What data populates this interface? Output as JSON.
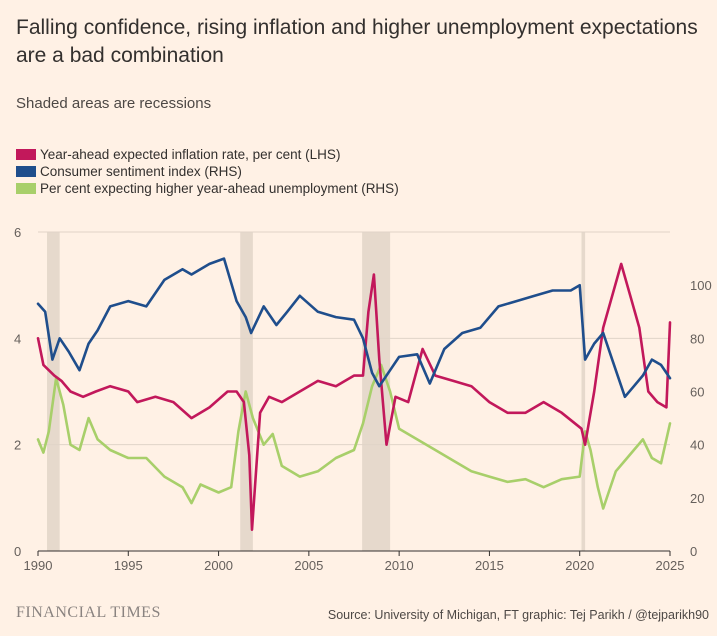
{
  "title": "Falling confidence, rising inflation and higher unemployment expectations are a bad combination",
  "subtitle": "Shaded areas are recessions",
  "source": "Source: University of Michigan, FT graphic: Tej Parikh / @tejparikh90",
  "brand": "FINANCIAL TIMES",
  "colors": {
    "background": "#FFF1E5",
    "inflation": "#C2185B",
    "sentiment": "#1F4E8C",
    "unemployment": "#A8CF6A",
    "recession": "#E6D9CC",
    "grid": "#E0D4C8"
  },
  "chart_data": {
    "type": "line",
    "x_range": [
      1990,
      2025
    ],
    "x_ticks": [
      "1990",
      "1995",
      "2000",
      "2005",
      "2010",
      "2015",
      "2020",
      "2025"
    ],
    "lhs": {
      "range": [
        0,
        6
      ],
      "ticks": [
        "0",
        "2",
        "4",
        "6"
      ]
    },
    "rhs": {
      "range": [
        0,
        120
      ],
      "ticks": [
        "0",
        "20",
        "40",
        "60",
        "80",
        "100"
      ]
    },
    "recessions": [
      [
        1990.5,
        1991.2
      ],
      [
        2001.2,
        2001.9
      ],
      [
        2007.95,
        2009.5
      ],
      [
        2020.1,
        2020.3
      ]
    ],
    "series": [
      {
        "name": "Year-ahead expected inflation rate, per cent (LHS)",
        "axis": "lhs",
        "color": "#C2185B",
        "x": [
          1990,
          1990.3,
          1990.6,
          1990.9,
          1991.3,
          1991.8,
          1992.5,
          1993.2,
          1994,
          1995,
          1995.5,
          1996.5,
          1997.5,
          1998.5,
          1999.5,
          2000.5,
          2001,
          2001.4,
          2001.7,
          2001.85,
          2002.3,
          2002.8,
          2003.5,
          2004.5,
          2005.5,
          2006.5,
          2007.5,
          2008,
          2008.3,
          2008.6,
          2008.9,
          2009.3,
          2009.8,
          2010.5,
          2011.3,
          2012,
          2013,
          2014,
          2015,
          2016,
          2017,
          2018,
          2019,
          2020.1,
          2020.3,
          2020.8,
          2021.3,
          2021.8,
          2022.3,
          2022.8,
          2023.3,
          2023.8,
          2024.3,
          2024.8,
          2025
        ],
        "values": [
          4.0,
          3.5,
          3.4,
          3.3,
          3.2,
          3.0,
          2.9,
          3.0,
          3.1,
          3.0,
          2.8,
          2.9,
          2.8,
          2.5,
          2.7,
          3.0,
          3.0,
          2.8,
          1.8,
          0.4,
          2.6,
          2.9,
          2.8,
          3.0,
          3.2,
          3.1,
          3.3,
          3.3,
          4.5,
          5.2,
          3.6,
          2.0,
          2.9,
          2.8,
          3.8,
          3.3,
          3.2,
          3.1,
          2.8,
          2.6,
          2.6,
          2.8,
          2.6,
          2.3,
          2.0,
          3.0,
          4.2,
          4.8,
          5.4,
          4.8,
          4.2,
          3.0,
          2.8,
          2.7,
          4.3
        ]
      },
      {
        "name": "Consumer sentiment index (RHS)",
        "axis": "rhs",
        "color": "#1F4E8C",
        "x": [
          1990,
          1990.4,
          1990.8,
          1991.2,
          1991.7,
          1992.3,
          1992.8,
          1993.3,
          1994,
          1995,
          1996,
          1997,
          1998,
          1998.5,
          1999.5,
          2000.3,
          2001,
          2001.5,
          2001.8,
          2002.5,
          2003.2,
          2003.8,
          2004.5,
          2005.5,
          2006.5,
          2007.5,
          2008,
          2008.5,
          2008.9,
          2009.5,
          2010,
          2011,
          2011.7,
          2012.5,
          2013.5,
          2014.5,
          2015.5,
          2016.5,
          2017.5,
          2018.5,
          2019.5,
          2020,
          2020.3,
          2020.8,
          2021.3,
          2021.8,
          2022.5,
          2023,
          2023.5,
          2024,
          2024.5,
          2025
        ],
        "values": [
          93,
          90,
          72,
          80,
          75,
          68,
          78,
          83,
          92,
          94,
          92,
          102,
          106,
          104,
          108,
          110,
          94,
          88,
          82,
          92,
          85,
          90,
          96,
          90,
          88,
          87,
          80,
          67,
          62,
          68,
          73,
          74,
          63,
          76,
          82,
          84,
          92,
          94,
          96,
          98,
          98,
          100,
          72,
          78,
          82,
          72,
          58,
          62,
          66,
          72,
          70,
          65
        ]
      },
      {
        "name": "Per cent expecting higher year-ahead unemployment (RHS)",
        "axis": "rhs",
        "color": "#A8CF6A",
        "x": [
          1990,
          1990.3,
          1990.6,
          1991,
          1991.4,
          1991.8,
          1992.3,
          1992.8,
          1993.3,
          1994,
          1995,
          1996,
          1997,
          1998,
          1998.5,
          1999,
          2000,
          2000.7,
          2001.1,
          2001.5,
          2001.9,
          2002.5,
          2003,
          2003.5,
          2004.5,
          2005.5,
          2006.5,
          2007.5,
          2008,
          2008.5,
          2009,
          2009.5,
          2010,
          2011,
          2012,
          2013,
          2014,
          2015,
          2016,
          2017,
          2018,
          2019,
          2020,
          2020.3,
          2020.6,
          2021,
          2021.3,
          2021.6,
          2022,
          2022.5,
          2023,
          2023.5,
          2024,
          2024.5,
          2025
        ],
        "values": [
          42,
          37,
          45,
          65,
          55,
          40,
          38,
          50,
          42,
          38,
          35,
          35,
          28,
          24,
          18,
          25,
          22,
          24,
          45,
          60,
          50,
          40,
          44,
          32,
          28,
          30,
          35,
          38,
          48,
          62,
          70,
          60,
          46,
          42,
          38,
          34,
          30,
          28,
          26,
          27,
          24,
          27,
          28,
          45,
          38,
          24,
          16,
          22,
          30,
          34,
          38,
          42,
          35,
          33,
          48
        ]
      }
    ]
  }
}
